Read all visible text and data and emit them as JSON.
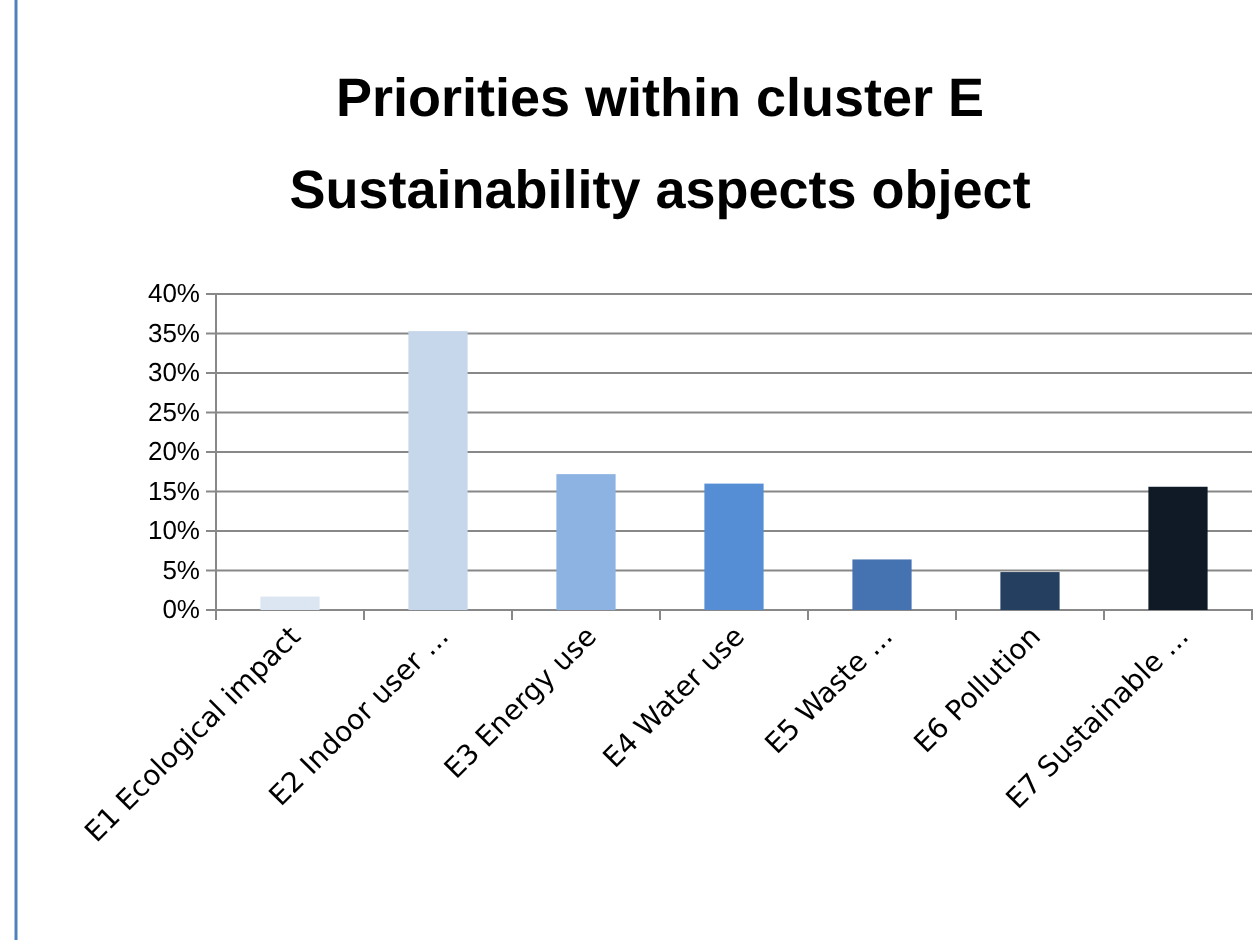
{
  "chart_data": {
    "type": "bar",
    "title": "Priorities within cluster E\nSustainability aspects object",
    "categories": [
      "E1 Ecological impact",
      "E2 Indoor user ...",
      "E3 Energy use",
      "E4 Water use",
      "E5 Waste ...",
      "E6 Pollution",
      "E7 Sustainable ..."
    ],
    "values": [
      0.017,
      0.353,
      0.172,
      0.16,
      0.064,
      0.048,
      0.156
    ],
    "colors": [
      "#dce6f2",
      "#c6d7eb",
      "#8db3e2",
      "#558ed5",
      "#4573b2",
      "#253f60",
      "#0f1a26"
    ],
    "ylim": [
      0,
      0.4
    ],
    "yticks": [
      {
        "value": 0,
        "label": "0%"
      },
      {
        "value": 0.05,
        "label": "5%"
      },
      {
        "value": 0.1,
        "label": "10%"
      },
      {
        "value": 0.15,
        "label": "15%"
      },
      {
        "value": 0.2,
        "label": "20%"
      },
      {
        "value": 0.25,
        "label": "25%"
      },
      {
        "value": 0.3,
        "label": "30%"
      },
      {
        "value": 0.35,
        "label": "35%"
      },
      {
        "value": 0.4,
        "label": "40%"
      }
    ],
    "grid": "y"
  }
}
